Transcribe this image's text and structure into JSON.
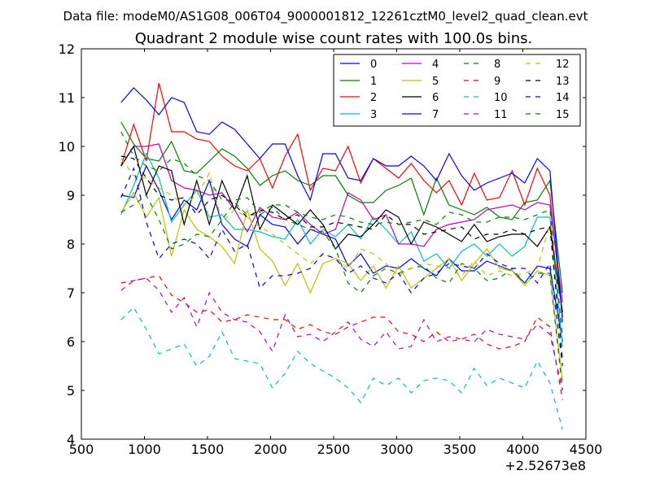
{
  "figure": {
    "suptitle": "Data file: modeM0/AS1G08_006T04_9000001812_12261cztM0_level2_quad_clean.evt",
    "title": "Quadrant 2 module wise count rates with 100.0s bins.",
    "x_offset_label": "+2.52673e8"
  },
  "chart_data": {
    "type": "line",
    "title": "Quadrant 2 module wise count rates with 100.0s bins.",
    "xlabel": "",
    "ylabel": "",
    "xlim": [
      500,
      4500
    ],
    "ylim": [
      4,
      12
    ],
    "x_offset": "+2.52673e8",
    "xticks": [
      "500",
      "1000",
      "1500",
      "2000",
      "2500",
      "3000",
      "3500",
      "4000",
      "4500"
    ],
    "yticks": [
      "4",
      "5",
      "6",
      "7",
      "8",
      "9",
      "10",
      "11",
      "12"
    ],
    "grid": false,
    "legend_position": "top-right",
    "x": [
      815,
      915,
      1015,
      1115,
      1215,
      1315,
      1415,
      1515,
      1615,
      1715,
      1815,
      1915,
      2015,
      2115,
      2215,
      2315,
      2415,
      2515,
      2615,
      2715,
      2815,
      2915,
      3015,
      3115,
      3215,
      3315,
      3415,
      3515,
      3615,
      3715,
      3815,
      3915,
      4015,
      4115,
      4215,
      4315
    ],
    "series": [
      {
        "name": "0",
        "color": "#0000ff",
        "dash": "solid",
        "values": [
          9.0,
          8.95,
          9.6,
          9.1,
          8.5,
          8.9,
          8.7,
          9.3,
          8.4,
          8.1,
          7.95,
          8.6,
          8.4,
          8.35,
          8.0,
          8.3,
          8.2,
          8.1,
          7.55,
          7.8,
          7.4,
          7.55,
          7.5,
          7.7,
          7.5,
          7.35,
          7.7,
          7.45,
          7.45,
          7.65,
          7.55,
          7.45,
          7.2,
          7.55,
          7.5,
          6.0
        ]
      },
      {
        "name": "1",
        "color": "#008000",
        "dash": "solid",
        "values": [
          10.5,
          10.05,
          9.75,
          9.7,
          10.1,
          9.5,
          9.45,
          9.7,
          9.95,
          9.8,
          9.55,
          9.2,
          9.4,
          9.5,
          9.3,
          9.2,
          9.4,
          9.4,
          9.0,
          8.85,
          8.85,
          9.1,
          9.2,
          9.35,
          8.6,
          9.35,
          8.8,
          8.7,
          8.6,
          8.75,
          8.55,
          8.5,
          8.85,
          8.9,
          9.3,
          7.0
        ]
      },
      {
        "name": "2",
        "color": "#ff0000",
        "dash": "solid",
        "values": [
          9.6,
          10.45,
          9.7,
          11.3,
          10.3,
          10.3,
          10.15,
          10.1,
          9.8,
          9.6,
          9.5,
          9.75,
          9.15,
          9.8,
          10.25,
          9.1,
          9.55,
          9.5,
          10.0,
          9.25,
          9.75,
          9.55,
          9.35,
          9.65,
          9.3,
          9.05,
          9.3,
          8.8,
          9.45,
          8.9,
          8.95,
          9.5,
          8.8,
          9.55,
          9.0,
          6.5
        ]
      },
      {
        "name": "3",
        "color": "#00bfbf",
        "dash": "solid",
        "values": [
          8.6,
          9.2,
          9.85,
          9.35,
          8.45,
          8.8,
          9.1,
          8.55,
          8.6,
          8.3,
          8.3,
          8.25,
          8.15,
          8.1,
          8.5,
          8.0,
          8.3,
          8.15,
          8.4,
          8.1,
          8.55,
          8.3,
          8.0,
          8.25,
          7.65,
          7.8,
          7.5,
          7.85,
          8.0,
          7.75,
          8.0,
          7.75,
          7.95,
          8.55,
          8.55,
          5.9
        ]
      },
      {
        "name": "4",
        "color": "#bf00bf",
        "dash": "solid",
        "values": [
          9.6,
          10.0,
          10.0,
          10.05,
          9.3,
          9.15,
          9.1,
          9.0,
          9.05,
          8.7,
          8.25,
          8.75,
          8.55,
          8.5,
          8.65,
          8.4,
          8.2,
          8.3,
          9.05,
          8.9,
          8.5,
          8.6,
          8.0,
          8.0,
          7.95,
          8.3,
          8.4,
          8.45,
          8.5,
          8.7,
          8.75,
          8.8,
          8.7,
          8.85,
          8.8,
          6.8
        ]
      },
      {
        "name": "5",
        "color": "#bfbf00",
        "dash": "solid",
        "values": [
          8.65,
          9.05,
          8.55,
          8.95,
          7.75,
          8.7,
          8.3,
          8.15,
          7.95,
          7.6,
          8.7,
          7.9,
          7.65,
          7.15,
          7.6,
          7.0,
          7.6,
          7.7,
          7.6,
          7.25,
          7.55,
          7.1,
          7.55,
          7.1,
          7.3,
          7.5,
          7.7,
          7.25,
          7.6,
          7.9,
          7.5,
          7.45,
          7.15,
          7.45,
          7.35,
          5.2
        ]
      },
      {
        "name": "6",
        "color": "#000000",
        "dash": "solid",
        "values": [
          9.6,
          10.0,
          9.0,
          9.6,
          9.5,
          8.4,
          9.3,
          8.4,
          9.3,
          8.7,
          9.4,
          8.3,
          8.8,
          8.6,
          8.4,
          8.7,
          8.4,
          7.9,
          8.2,
          8.15,
          8.4,
          8.7,
          8.55,
          8.0,
          8.45,
          8.35,
          8.2,
          8.05,
          8.4,
          8.05,
          8.15,
          8.2,
          8.2,
          7.95,
          8.35,
          6.6
        ]
      },
      {
        "name": "7",
        "color": "#0000ff",
        "dash": "solid",
        "values": [
          10.9,
          11.2,
          10.95,
          10.65,
          11.0,
          10.9,
          10.3,
          10.25,
          10.5,
          10.35,
          10.05,
          9.75,
          10.05,
          10.05,
          9.4,
          8.9,
          9.85,
          9.85,
          9.35,
          9.3,
          9.75,
          9.6,
          9.6,
          9.8,
          9.6,
          9.3,
          9.85,
          9.4,
          9.1,
          9.25,
          9.35,
          9.45,
          9.25,
          9.75,
          9.5,
          6.4
        ]
      },
      {
        "name": "8",
        "color": "#008000",
        "dash": "dashed",
        "values": [
          8.65,
          8.8,
          9.0,
          8.5,
          7.9,
          8.0,
          8.2,
          8.15,
          8.5,
          8.85,
          8.6,
          8.6,
          8.75,
          8.5,
          8.4,
          8.3,
          8.25,
          7.9,
          7.2,
          7.0,
          7.35,
          7.5,
          7.4,
          7.5,
          7.55,
          7.3,
          7.2,
          7.6,
          7.5,
          7.25,
          7.3,
          7.5,
          7.2,
          7.4,
          7.4,
          5.0
        ]
      },
      {
        "name": "9",
        "color": "#ff0000",
        "dash": "dashed",
        "values": [
          7.2,
          7.25,
          7.3,
          7.35,
          6.95,
          6.8,
          6.6,
          6.65,
          6.4,
          6.45,
          6.55,
          6.5,
          6.45,
          6.45,
          6.25,
          6.35,
          6.2,
          6.15,
          6.3,
          6.4,
          6.5,
          6.5,
          6.2,
          6.15,
          6.0,
          6.2,
          6.0,
          6.05,
          6.15,
          5.95,
          5.85,
          5.9,
          6.0,
          6.5,
          6.3,
          4.8
        ]
      },
      {
        "name": "10",
        "color": "#00bfbf",
        "dash": "dashed",
        "values": [
          6.45,
          6.7,
          6.25,
          5.75,
          5.85,
          5.95,
          5.5,
          5.7,
          6.2,
          5.65,
          5.6,
          5.55,
          5.05,
          5.35,
          5.8,
          5.55,
          5.4,
          5.25,
          5.05,
          4.75,
          5.25,
          5.1,
          5.25,
          4.95,
          5.2,
          5.25,
          5.2,
          4.95,
          5.45,
          5.1,
          5.25,
          5.15,
          5.05,
          5.6,
          5.15,
          4.2
        ]
      },
      {
        "name": "11",
        "color": "#bf00bf",
        "dash": "dashed",
        "values": [
          7.05,
          7.25,
          7.3,
          7.05,
          6.6,
          6.9,
          6.3,
          7.0,
          6.6,
          6.45,
          6.4,
          6.2,
          5.8,
          6.55,
          6.1,
          6.15,
          6.0,
          6.2,
          6.4,
          6.05,
          5.9,
          6.2,
          5.85,
          5.9,
          6.45,
          6.0,
          6.1,
          6.05,
          6.0,
          6.25,
          6.15,
          6.1,
          6.05,
          6.35,
          6.15,
          5.0
        ]
      },
      {
        "name": "12",
        "color": "#bfbf00",
        "dash": "dashed",
        "values": [
          9.75,
          9.4,
          9.35,
          9.15,
          9.0,
          8.8,
          9.0,
          9.45,
          8.45,
          8.7,
          8.55,
          8.35,
          8.2,
          8.0,
          7.8,
          7.6,
          7.8,
          7.7,
          7.5,
          7.9,
          7.8,
          7.6,
          7.35,
          7.5,
          7.6,
          7.55,
          7.5,
          7.35,
          7.65,
          7.35,
          7.45,
          7.35,
          7.4,
          7.5,
          8.4,
          5.6
        ]
      },
      {
        "name": "13",
        "color": "#000000",
        "dash": "dashed",
        "values": [
          9.8,
          9.75,
          9.35,
          9.0,
          8.9,
          8.95,
          8.6,
          8.9,
          9.0,
          8.8,
          8.55,
          8.7,
          8.65,
          8.5,
          8.6,
          8.35,
          8.35,
          8.45,
          8.4,
          8.35,
          8.3,
          8.6,
          8.4,
          8.4,
          8.2,
          8.25,
          8.3,
          8.35,
          8.1,
          8.2,
          8.2,
          8.3,
          8.2,
          8.3,
          8.35,
          5.6
        ]
      },
      {
        "name": "14",
        "color": "#0000ff",
        "dash": "dashed",
        "values": [
          8.95,
          9.55,
          8.45,
          7.7,
          8.0,
          8.1,
          8.0,
          7.7,
          8.3,
          7.85,
          8.0,
          7.1,
          7.35,
          7.35,
          7.4,
          7.5,
          7.8,
          7.7,
          7.4,
          7.55,
          7.3,
          7.2,
          7.4,
          7.0,
          7.3,
          7.4,
          7.6,
          7.55,
          7.5,
          7.8,
          7.6,
          7.5,
          7.5,
          7.2,
          7.6,
          5.5
        ]
      },
      {
        "name": "15",
        "color": "#008000",
        "dash": "dashed",
        "values": [
          10.3,
          9.8,
          9.6,
          9.5,
          9.75,
          9.65,
          9.4,
          9.3,
          8.9,
          8.9,
          8.95,
          8.65,
          8.8,
          8.8,
          8.65,
          8.55,
          8.5,
          8.6,
          8.55,
          8.45,
          8.4,
          8.45,
          8.4,
          8.45,
          8.5,
          8.4,
          8.65,
          8.6,
          8.45,
          8.45,
          8.55,
          8.55,
          8.5,
          8.6,
          8.7,
          6.1
        ]
      }
    ]
  }
}
